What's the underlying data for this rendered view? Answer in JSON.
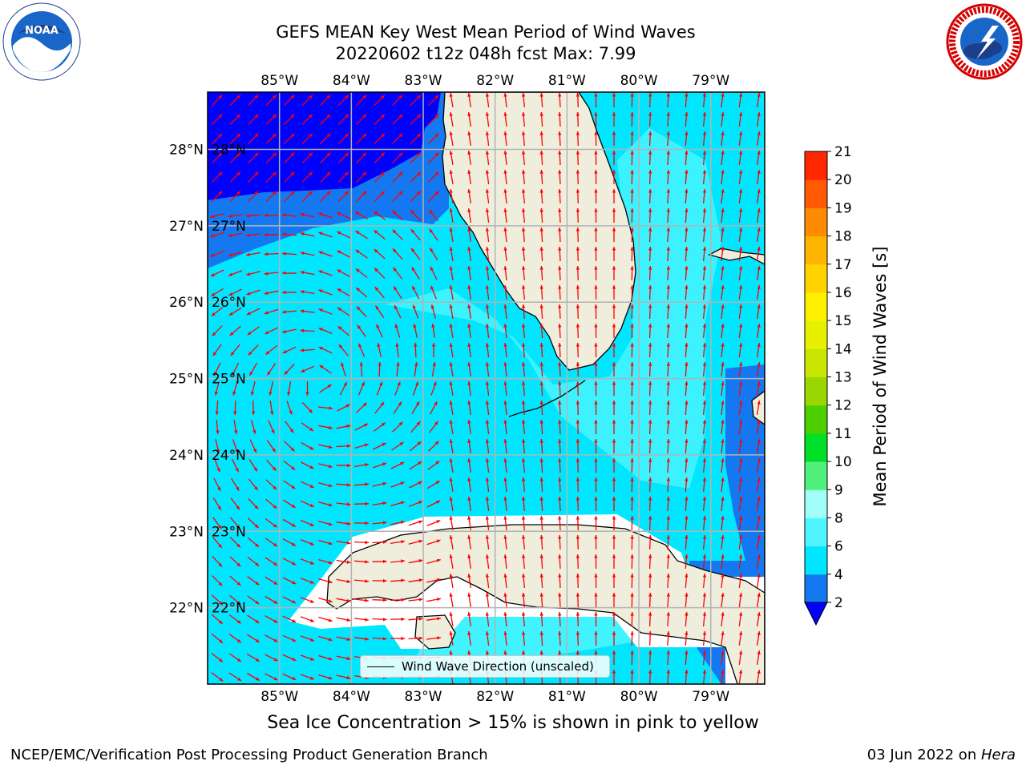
{
  "header": {
    "title_line1": "GEFS MEAN Key West Mean Period of Wind Waves",
    "title_line2": "20220602 t12z 048h fcst   Max: 7.99"
  },
  "logos": {
    "left": "noaa-logo",
    "left_text": "NOAA",
    "right": "nws-logo"
  },
  "map": {
    "lon_labels": [
      "85°W",
      "84°W",
      "83°W",
      "82°W",
      "81°W",
      "80°W",
      "79°W"
    ],
    "lat_labels": [
      "28°N",
      "27°N",
      "26°N",
      "25°N",
      "24°N",
      "23°N",
      "22°N"
    ],
    "lon_range": [
      -86.0,
      -78.25
    ],
    "lat_range": [
      21.0,
      28.75
    ],
    "land_color": "#efeddc",
    "gridline_color": "#b3b3b3",
    "arrow_color": "#ff0000",
    "legend_label": "Wind Wave Direction (unscaled)"
  },
  "colorbar": {
    "label": "Mean Period of Wind Waves [s]",
    "ticks": [
      "2",
      "4",
      "6",
      "8",
      "9",
      "10",
      "11",
      "12",
      "13",
      "14",
      "15",
      "16",
      "17",
      "18",
      "19",
      "20",
      "21"
    ],
    "colors": [
      "#1478f0",
      "#00e6ff",
      "#50f6ff",
      "#a0fff6",
      "#50f07c",
      "#00e028",
      "#4ecf00",
      "#9cd600",
      "#c8e600",
      "#e6f000",
      "#fff000",
      "#ffd200",
      "#ffb400",
      "#ff8c00",
      "#ff5a00",
      "#ff2800"
    ],
    "extend_color": "#0000ff"
  },
  "footer": {
    "note": "Sea Ice Concentration > 15% is shown in pink to yellow",
    "left": "NCEP/EMC/Verification Post Processing Product Generation Branch",
    "date": "03 Jun 2022 on ",
    "machine": "Hera"
  }
}
